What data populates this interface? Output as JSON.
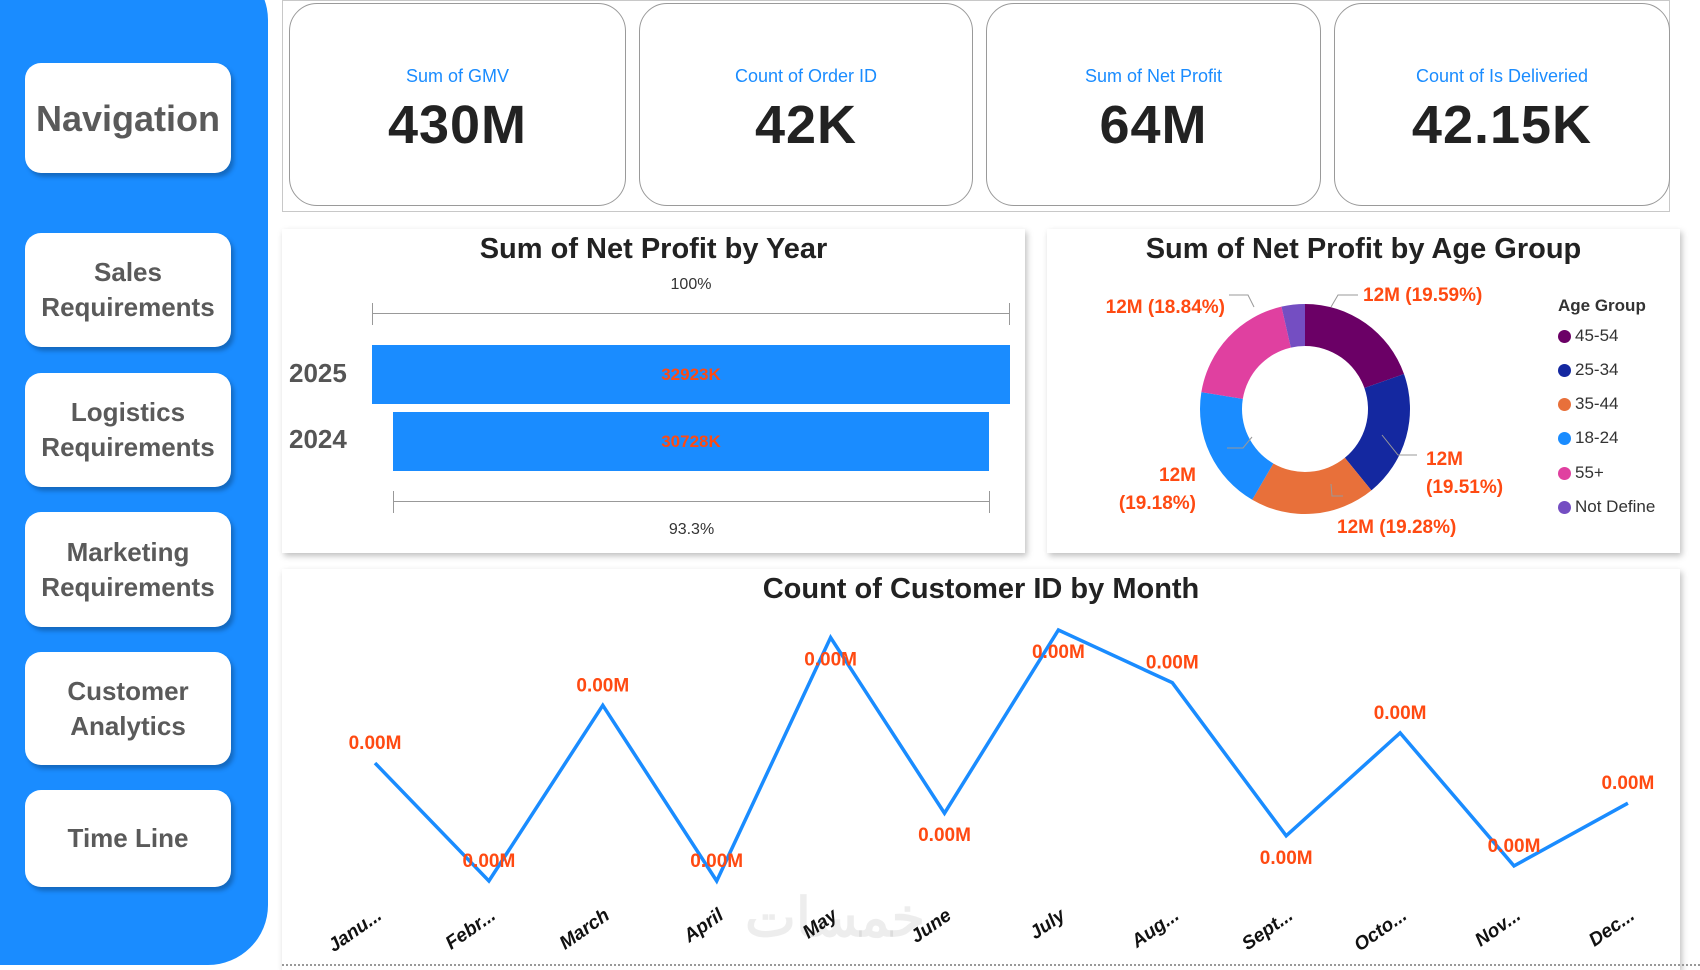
{
  "sidebar": {
    "color": "#1a8cff",
    "items": [
      {
        "label": "Navigation"
      },
      {
        "label": "Sales Requirements"
      },
      {
        "label": "Logistics Requirements"
      },
      {
        "label": "Marketing Requirements"
      },
      {
        "label": "Customer Analytics"
      },
      {
        "label": "Time Line"
      }
    ]
  },
  "kpis": [
    {
      "label": "Sum of GMV",
      "value": "430M"
    },
    {
      "label": "Count of Order ID",
      "value": "42K"
    },
    {
      "label": "Sum of Net Profit",
      "value": "64M"
    },
    {
      "label": "Count of Is Deliveried",
      "value": "42.15K"
    }
  ],
  "chart_data": [
    {
      "type": "funnel",
      "title": "Sum of Net Profit by Year",
      "categories": [
        "2025",
        "2024"
      ],
      "values": [
        32923,
        30728
      ],
      "data_labels": [
        "32923K",
        "30728K"
      ],
      "top_percent_label": "100%",
      "bottom_percent_label": "93.3%",
      "bar_color": "#1a8cff",
      "label_color": "#ff4a12"
    },
    {
      "type": "pie",
      "variant": "donut",
      "title": "Sum of Net Profit by Age Group",
      "legend_title": "Age Group",
      "legend_position": "right",
      "slices": [
        {
          "name": "45-54",
          "percent": 19.59,
          "label": "12M (19.59%)",
          "color": "#6b0066"
        },
        {
          "name": "25-34",
          "percent": 19.51,
          "label": "12M (19.51%)",
          "color": "#1428a0"
        },
        {
          "name": "35-44",
          "percent": 19.28,
          "label": "12M (19.28%)",
          "color": "#e8703a"
        },
        {
          "name": "18-24",
          "percent": 19.18,
          "label": "12M (19.18%)",
          "color": "#1a8cff"
        },
        {
          "name": "55+",
          "percent": 18.84,
          "label": "12M (18.84%)",
          "color": "#e040a0"
        },
        {
          "name": "Not Define",
          "percent": 3.6,
          "label": "",
          "color": "#744ec2"
        }
      ]
    },
    {
      "type": "line",
      "title": "Count of Customer ID by Month",
      "categories": [
        "Janu...",
        "Febr...",
        "March",
        "April",
        "May",
        "June",
        "July",
        "Aug...",
        "Sept...",
        "Octo...",
        "Nov...",
        "Dec..."
      ],
      "values": [
        47,
        0,
        70,
        0,
        97,
        27,
        100,
        79,
        18,
        59,
        6,
        31
      ],
      "data_labels": [
        "0.00M",
        "0.00M",
        "0.00M",
        "0.00M",
        "0.00M",
        "0.00M",
        "0.00M",
        "0.00M",
        "0.00M",
        "0.00M",
        "0.00M",
        "0.00M"
      ],
      "y_axis_visible": false,
      "grid": false,
      "line_color": "#1a8cff",
      "label_color": "#ff4a12"
    }
  ],
  "watermark": {
    "logo_text": "خمسات"
  }
}
